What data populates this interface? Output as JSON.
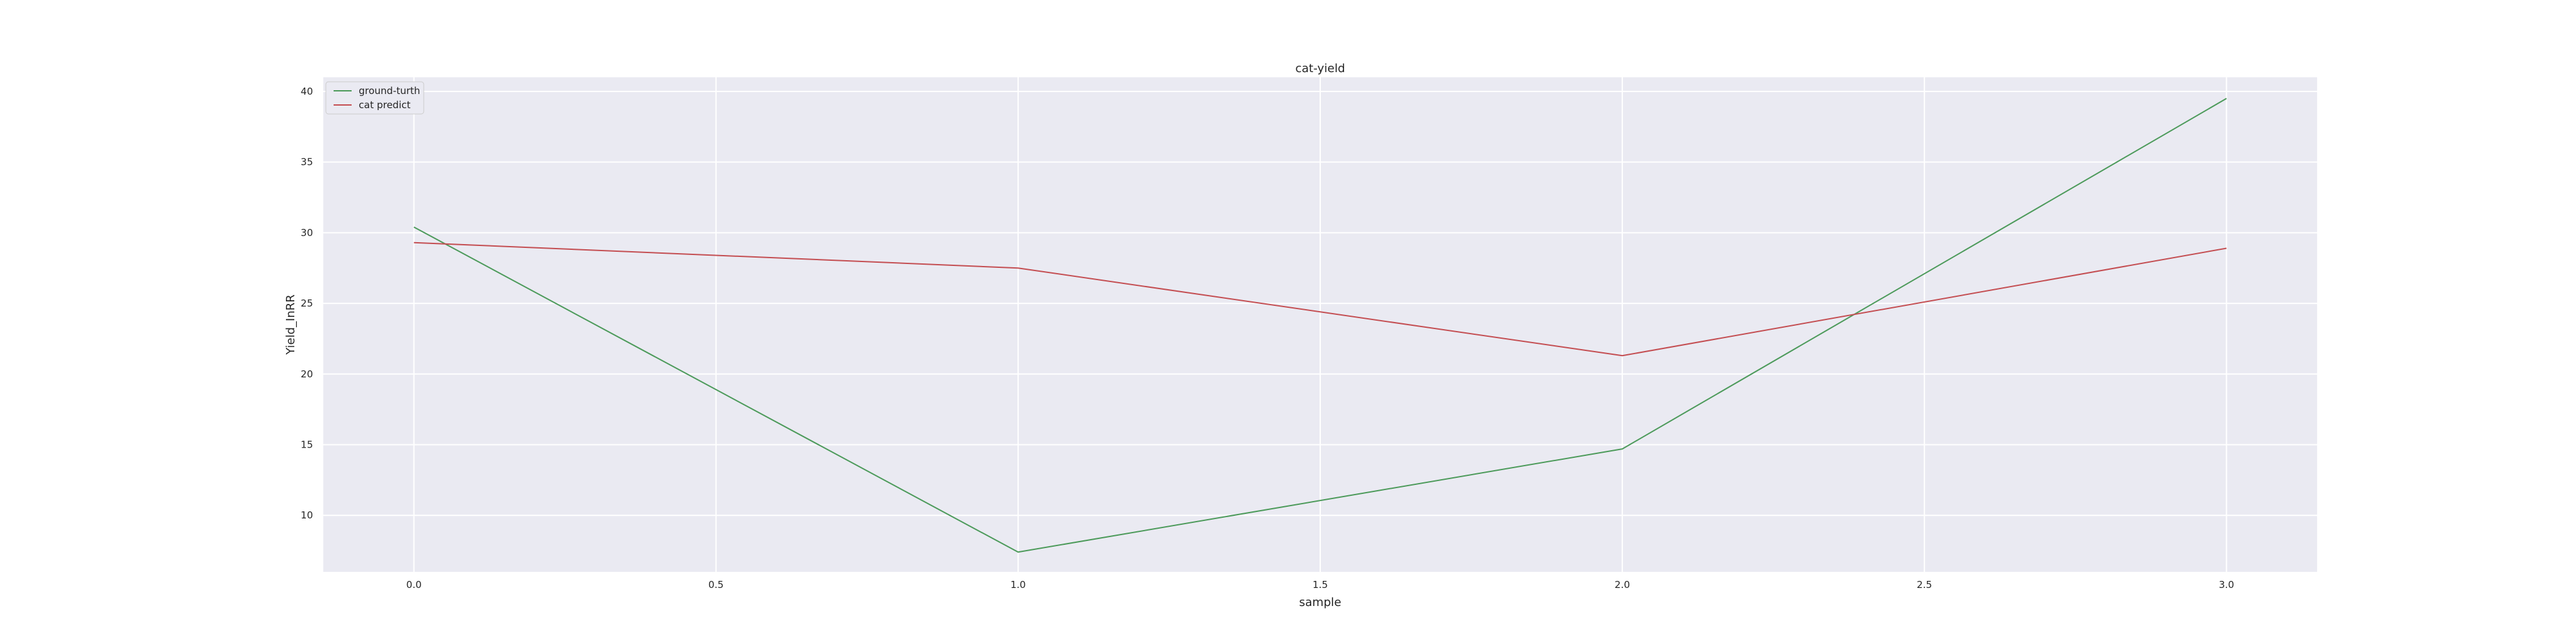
{
  "chart_data": {
    "type": "line",
    "title": "cat-yield",
    "xlabel": "sample",
    "ylabel": "Yield_InRR",
    "xlim": [
      -0.15,
      3.15
    ],
    "ylim": [
      6.0,
      41.0
    ],
    "xticks": [
      0.0,
      0.5,
      1.0,
      1.5,
      2.0,
      2.5,
      3.0
    ],
    "xtick_labels": [
      "0.0",
      "0.5",
      "1.0",
      "1.5",
      "2.0",
      "2.5",
      "3.0"
    ],
    "yticks": [
      10,
      15,
      20,
      25,
      30,
      35,
      40
    ],
    "ytick_labels": [
      "10",
      "15",
      "20",
      "25",
      "30",
      "35",
      "40"
    ],
    "grid": true,
    "legend_position": "top-left",
    "x": [
      0,
      1,
      2,
      3
    ],
    "series": [
      {
        "name": "ground-turth",
        "color": "#4c9a5a",
        "values": [
          30.4,
          7.4,
          14.7,
          39.5
        ]
      },
      {
        "name": "cat predict",
        "color": "#c44e52",
        "values": [
          29.3,
          27.5,
          21.3,
          28.9
        ]
      }
    ]
  }
}
